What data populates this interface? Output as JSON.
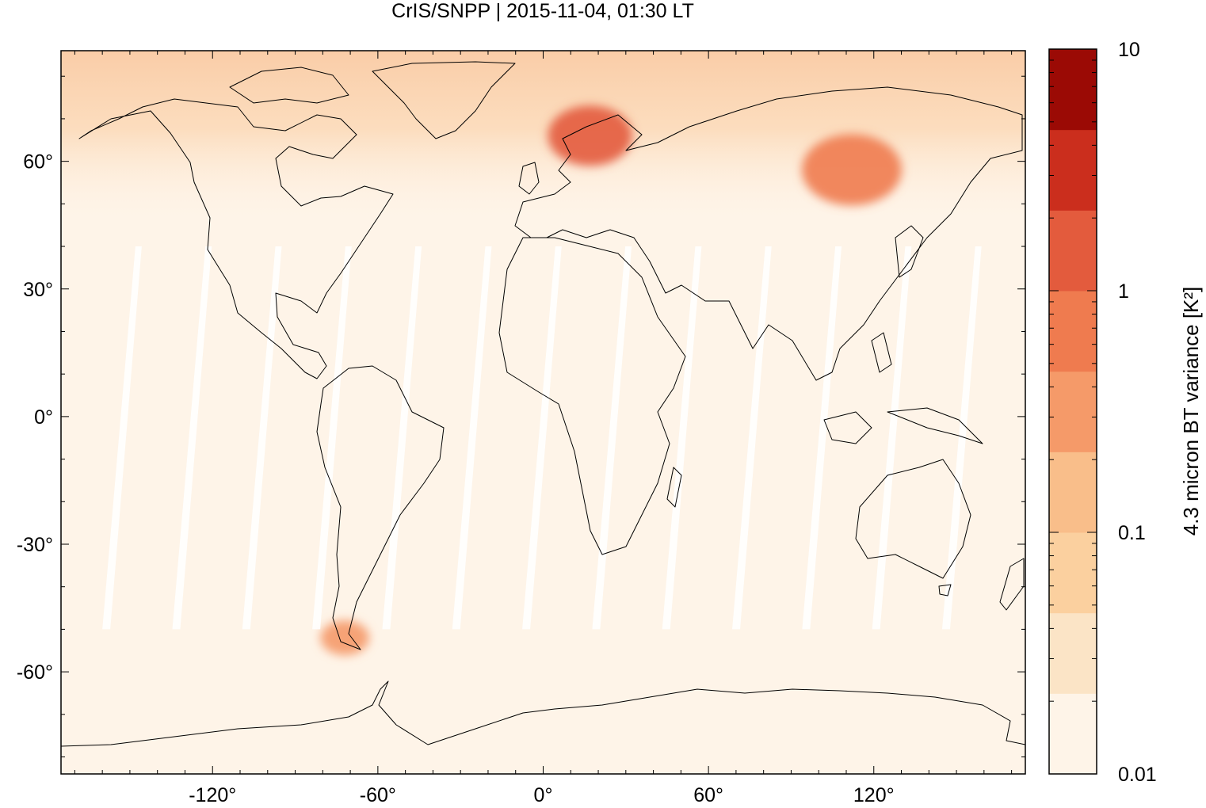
{
  "chart_data": {
    "type": "heatmap",
    "title": "CrIS/SNPP | 2015-11-04, 01:30 LT",
    "xlabel": "",
    "ylabel": "",
    "xlim": [
      -175,
      175
    ],
    "ylim": [
      -84,
      86
    ],
    "x_ticks": [
      -120,
      -60,
      0,
      60,
      120
    ],
    "x_tick_labels": [
      "-120°",
      "-60°",
      "0°",
      "60°",
      "120°"
    ],
    "y_ticks": [
      60,
      30,
      0,
      -30,
      -60
    ],
    "y_tick_labels": [
      "60°",
      "30°",
      "0°",
      "-30°",
      "-60°"
    ],
    "grid": false,
    "colorbar": {
      "label": "4.3 micron BT variance [K²]",
      "scale": "log",
      "range": [
        0.01,
        10
      ],
      "tick_values": [
        10,
        1,
        0.1,
        0.01
      ],
      "tick_labels": [
        "10",
        "1",
        "0.1",
        "0.01"
      ],
      "colors": [
        "#fef4e8",
        "#fbe4c6",
        "#fbd09f",
        "#f9be8a",
        "#f59a69",
        "#ef7b4f",
        "#e35b3d",
        "#cb2e1d",
        "#9b0a05"
      ]
    },
    "field": {
      "description_regions": [
        {
          "name": "northern high latitudes",
          "lat_range": [
            45,
            86
          ],
          "approx_variance": 0.2
        },
        {
          "name": "Scandinavia peak",
          "lon": 17,
          "lat": 66,
          "approx_variance": 1.5
        },
        {
          "name": "Siberia peak",
          "lon": 112,
          "lat": 58,
          "approx_variance": 0.8
        },
        {
          "name": "Patagonia peak",
          "lon": -72,
          "lat": -52,
          "approx_variance": 0.4
        },
        {
          "name": "background",
          "approx_variance": 0.015
        }
      ]
    },
    "annotations": {
      "coastlines": true,
      "orbit_gaps": true
    }
  }
}
